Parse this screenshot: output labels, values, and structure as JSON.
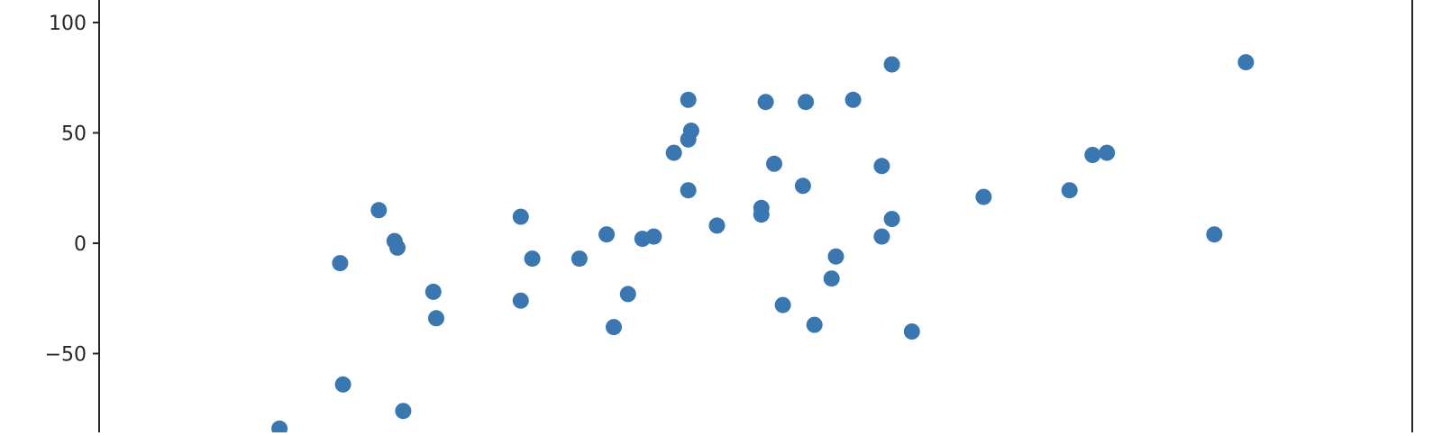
{
  "chart_data": {
    "type": "scatter",
    "title": "",
    "xlabel": "",
    "ylabel": "",
    "marker_color": "#3a76b0",
    "axis_color": "#262626",
    "ylim": [
      -88,
      110
    ],
    "xlim": [
      0,
      100
    ],
    "yticks": [
      {
        "value": -50,
        "label": "−50"
      },
      {
        "value": 0,
        "label": "0"
      },
      {
        "value": 50,
        "label": "50"
      },
      {
        "value": 100,
        "label": "100"
      }
    ],
    "points": [
      {
        "x": 19.38,
        "y": -84
      },
      {
        "x": 23.59,
        "y": -9
      },
      {
        "x": 23.79,
        "y": -64
      },
      {
        "x": 26.27,
        "y": 15
      },
      {
        "x": 27.36,
        "y": 1
      },
      {
        "x": 27.56,
        "y": -2
      },
      {
        "x": 27.96,
        "y": -76
      },
      {
        "x": 30.05,
        "y": -22
      },
      {
        "x": 30.25,
        "y": -34
      },
      {
        "x": 36.11,
        "y": 12
      },
      {
        "x": 36.11,
        "y": -26
      },
      {
        "x": 36.91,
        "y": -7
      },
      {
        "x": 40.18,
        "y": -7
      },
      {
        "x": 42.07,
        "y": 4
      },
      {
        "x": 42.56,
        "y": -38
      },
      {
        "x": 43.55,
        "y": -23
      },
      {
        "x": 44.55,
        "y": 2
      },
      {
        "x": 45.34,
        "y": 3
      },
      {
        "x": 46.73,
        "y": 41
      },
      {
        "x": 47.73,
        "y": 65
      },
      {
        "x": 47.73,
        "y": 47
      },
      {
        "x": 47.93,
        "y": 51
      },
      {
        "x": 47.73,
        "y": 24
      },
      {
        "x": 49.72,
        "y": 8
      },
      {
        "x": 52.8,
        "y": 16
      },
      {
        "x": 52.8,
        "y": 13
      },
      {
        "x": 53.1,
        "y": 64
      },
      {
        "x": 53.69,
        "y": 36
      },
      {
        "x": 54.29,
        "y": -28
      },
      {
        "x": 55.88,
        "y": 64
      },
      {
        "x": 55.68,
        "y": 26
      },
      {
        "x": 56.48,
        "y": -37
      },
      {
        "x": 57.67,
        "y": -16
      },
      {
        "x": 57.97,
        "y": -6
      },
      {
        "x": 59.16,
        "y": 65
      },
      {
        "x": 61.15,
        "y": 35
      },
      {
        "x": 61.15,
        "y": 3
      },
      {
        "x": 61.85,
        "y": 81
      },
      {
        "x": 61.85,
        "y": 11
      },
      {
        "x": 63.24,
        "y": -40
      },
      {
        "x": 68.21,
        "y": 21
      },
      {
        "x": 74.17,
        "y": 24
      },
      {
        "x": 75.77,
        "y": 40
      },
      {
        "x": 76.76,
        "y": 41
      },
      {
        "x": 84.21,
        "y": 4
      },
      {
        "x": 86.4,
        "y": 82
      }
    ]
  }
}
